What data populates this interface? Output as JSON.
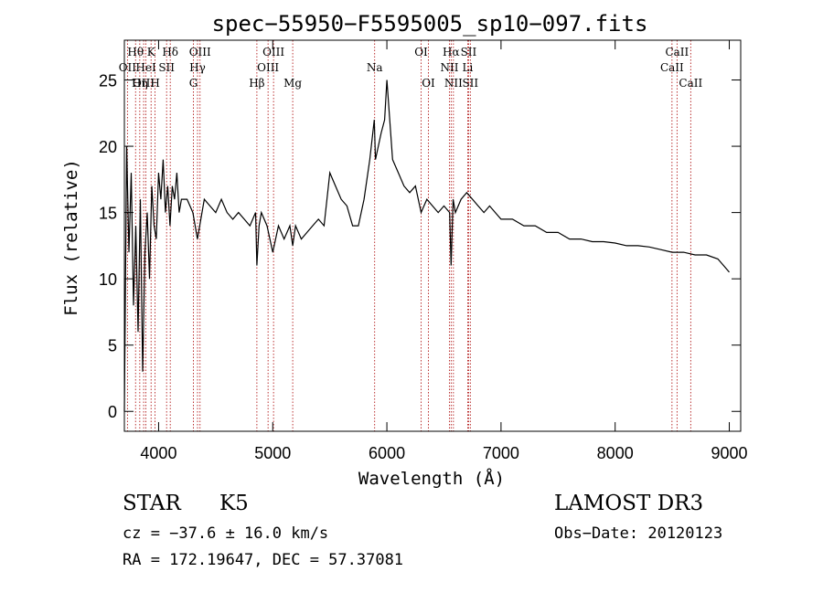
{
  "chart_data": {
    "type": "line",
    "title": "spec−55950−F5595005_sp10−097.fits",
    "xlabel": "Wavelength (Å)",
    "ylabel": "Flux (relative)",
    "xlim": [
      3700,
      9100
    ],
    "ylim": [
      -1.5,
      28
    ],
    "x_ticks": [
      4000,
      5000,
      6000,
      7000,
      8000,
      9000
    ],
    "y_ticks": [
      0,
      5,
      10,
      15,
      20,
      25
    ],
    "x_tick_labels": [
      "4000",
      "5000",
      "6000",
      "7000",
      "8000",
      "9000"
    ],
    "y_tick_labels": [
      "0",
      "5",
      "10",
      "15",
      "20",
      "25"
    ],
    "grid": false,
    "line_color": "#000000",
    "marker_color": "#aa0000",
    "series": [
      {
        "name": "spectrum",
        "x": [
          3700,
          3720,
          3740,
          3760,
          3780,
          3800,
          3820,
          3840,
          3860,
          3880,
          3900,
          3920,
          3940,
          3960,
          3980,
          4000,
          4020,
          4040,
          4060,
          4080,
          4100,
          4120,
          4140,
          4160,
          4180,
          4200,
          4250,
          4300,
          4340,
          4400,
          4450,
          4500,
          4550,
          4600,
          4650,
          4700,
          4750,
          4800,
          4850,
          4861,
          4880,
          4900,
          4950,
          5000,
          5050,
          5100,
          5150,
          5175,
          5200,
          5250,
          5300,
          5350,
          5400,
          5450,
          5500,
          5550,
          5600,
          5650,
          5700,
          5750,
          5800,
          5850,
          5890,
          5900,
          5950,
          5980,
          6000,
          6050,
          6100,
          6150,
          6200,
          6250,
          6300,
          6350,
          6400,
          6450,
          6500,
          6550,
          6563,
          6580,
          6600,
          6650,
          6700,
          6750,
          6800,
          6850,
          6900,
          6950,
          7000,
          7100,
          7200,
          7300,
          7400,
          7500,
          7600,
          7700,
          7800,
          7900,
          8000,
          8100,
          8200,
          8300,
          8400,
          8500,
          8600,
          8700,
          8800,
          8900,
          8950,
          9000
        ],
        "values": [
          0,
          20,
          12,
          18,
          8,
          14,
          6,
          16,
          3,
          12,
          15,
          10,
          17,
          14,
          13,
          18,
          16,
          19,
          15,
          17,
          14,
          17,
          16,
          18,
          15,
          16,
          16,
          15,
          13,
          16,
          15.5,
          15,
          16,
          15,
          14.5,
          15,
          14.5,
          14,
          15,
          11,
          14,
          15,
          14,
          12,
          14,
          13,
          14,
          12.5,
          14,
          13,
          13.5,
          14,
          14.5,
          14,
          18,
          17,
          16,
          15.5,
          14,
          14,
          16,
          19,
          22,
          19,
          21,
          22,
          25,
          19,
          18,
          17,
          16.5,
          17,
          15,
          16,
          15.5,
          15,
          15.5,
          15,
          11,
          16,
          15,
          16,
          16.5,
          16,
          15.5,
          15,
          15.5,
          15,
          14.5,
          14.5,
          14,
          14,
          13.5,
          13.5,
          13,
          13,
          12.8,
          12.8,
          12.7,
          12.5,
          12.5,
          12.4,
          12.2,
          12,
          12,
          11.8,
          11.8,
          11.5,
          11,
          10.5
        ]
      }
    ],
    "annotations": [
      {
        "label": "Hθ",
        "x": 3798,
        "row": 1
      },
      {
        "label": "OII",
        "x": 3727,
        "row": 2
      },
      {
        "label": "OIII",
        "x": 3869,
        "row": 3
      },
      {
        "label": "K",
        "x": 3934,
        "row": 1
      },
      {
        "label": "HeI",
        "x": 3889,
        "row": 2
      },
      {
        "label": "Hη",
        "x": 3835,
        "row": 3
      },
      {
        "label": "Hδ",
        "x": 4102,
        "row": 1
      },
      {
        "label": "SII",
        "x": 4070,
        "row": 2
      },
      {
        "label": "H",
        "x": 3969,
        "row": 3
      },
      {
        "label": "OIII",
        "x": 4363,
        "row": 1
      },
      {
        "label": "Hγ",
        "x": 4341,
        "row": 2
      },
      {
        "label": "G",
        "x": 4305,
        "row": 3
      },
      {
        "label": "OIII",
        "x": 5007,
        "row": 1
      },
      {
        "label": "OIII",
        "x": 4959,
        "row": 2
      },
      {
        "label": "Hβ",
        "x": 4861,
        "row": 3
      },
      {
        "label": "Mg",
        "x": 5175,
        "row": 3
      },
      {
        "label": "Na",
        "x": 5893,
        "row": 2
      },
      {
        "label": "OI",
        "x": 6300,
        "row": 1
      },
      {
        "label": "OI",
        "x": 6364,
        "row": 3
      },
      {
        "label": "Hα",
        "x": 6563,
        "row": 1
      },
      {
        "label": "SII",
        "x": 6716,
        "row": 1
      },
      {
        "label": "NII",
        "x": 6548,
        "row": 2
      },
      {
        "label": "Li",
        "x": 6708,
        "row": 2
      },
      {
        "label": "NII",
        "x": 6583,
        "row": 3
      },
      {
        "label": "SII",
        "x": 6731,
        "row": 3
      },
      {
        "label": "CaII",
        "x": 8542,
        "row": 1
      },
      {
        "label": "CaII",
        "x": 8498,
        "row": 2
      },
      {
        "label": "CaII",
        "x": 8662,
        "row": 3
      }
    ]
  },
  "info": {
    "class": "STAR",
    "subclass": "K5",
    "survey": "LAMOST DR3",
    "cz": "cz = −37.6 ± 16.0 km/s",
    "obs_date": "Obs−Date: 20120123",
    "radec": "RA = 172.19647, DEC =  57.37081"
  }
}
